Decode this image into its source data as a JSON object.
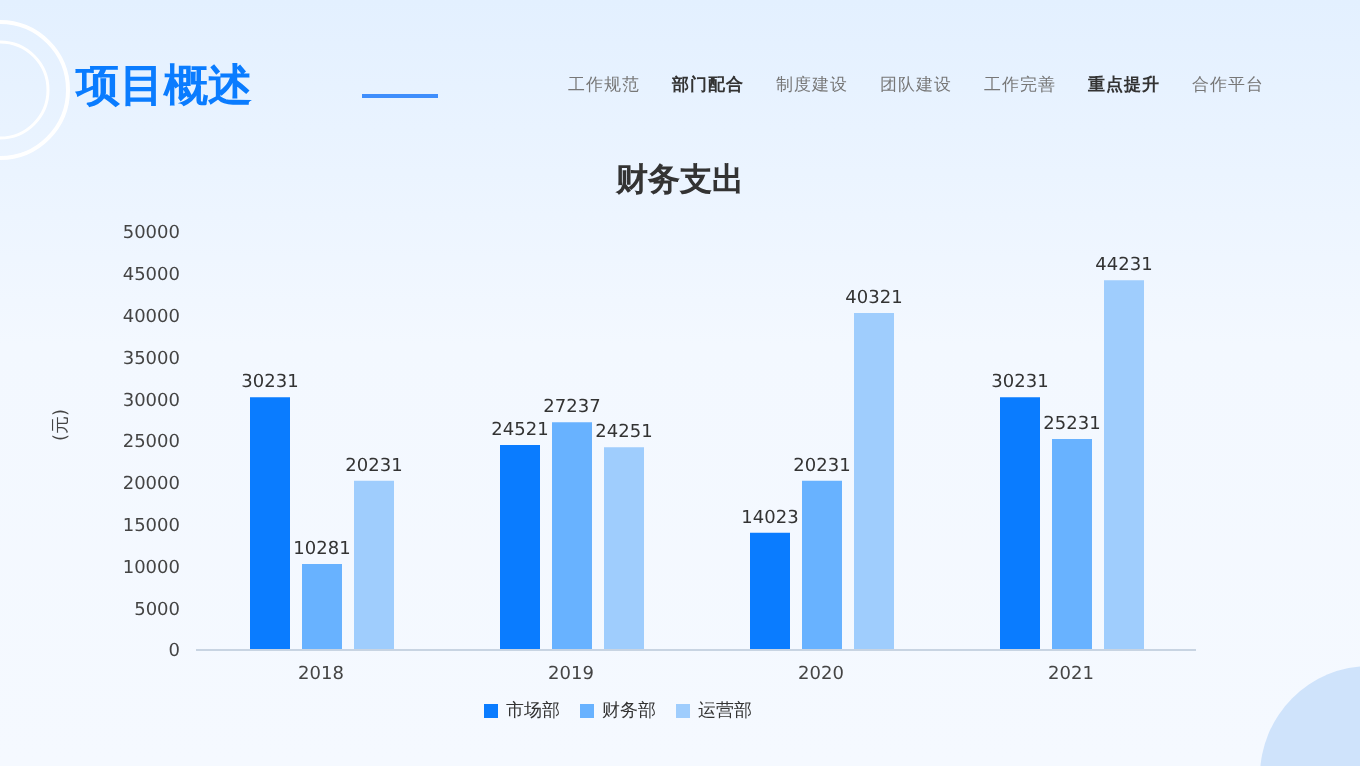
{
  "chart_data": {
    "type": "bar",
    "title": "财务支出",
    "ylabel": "(元)",
    "annotations": [
      "项目概述",
      "工作规范",
      "部门配合",
      "制度建设",
      "团队建设",
      "工作完善",
      "重点提升",
      "合作平台"
    ],
    "categories": [
      "2018",
      "2019",
      "2020",
      "2021"
    ],
    "series": [
      {
        "name": "市场部",
        "color": "#0a7cff",
        "values": [
          30231,
          24521,
          14023,
          30231
        ]
      },
      {
        "name": "财务部",
        "color": "#68b2ff",
        "values": [
          10281,
          27237,
          20231,
          25231
        ]
      },
      {
        "name": "运营部",
        "color": "#9fcdfd",
        "values": [
          20231,
          24251,
          40321,
          44231
        ]
      }
    ],
    "ylim": [
      0,
      50000
    ],
    "yticks": [
      0,
      5000,
      10000,
      15000,
      20000,
      25000,
      30000,
      35000,
      40000,
      45000,
      50000
    ],
    "data_labels": true,
    "legend": "bottom",
    "grid": false
  }
}
